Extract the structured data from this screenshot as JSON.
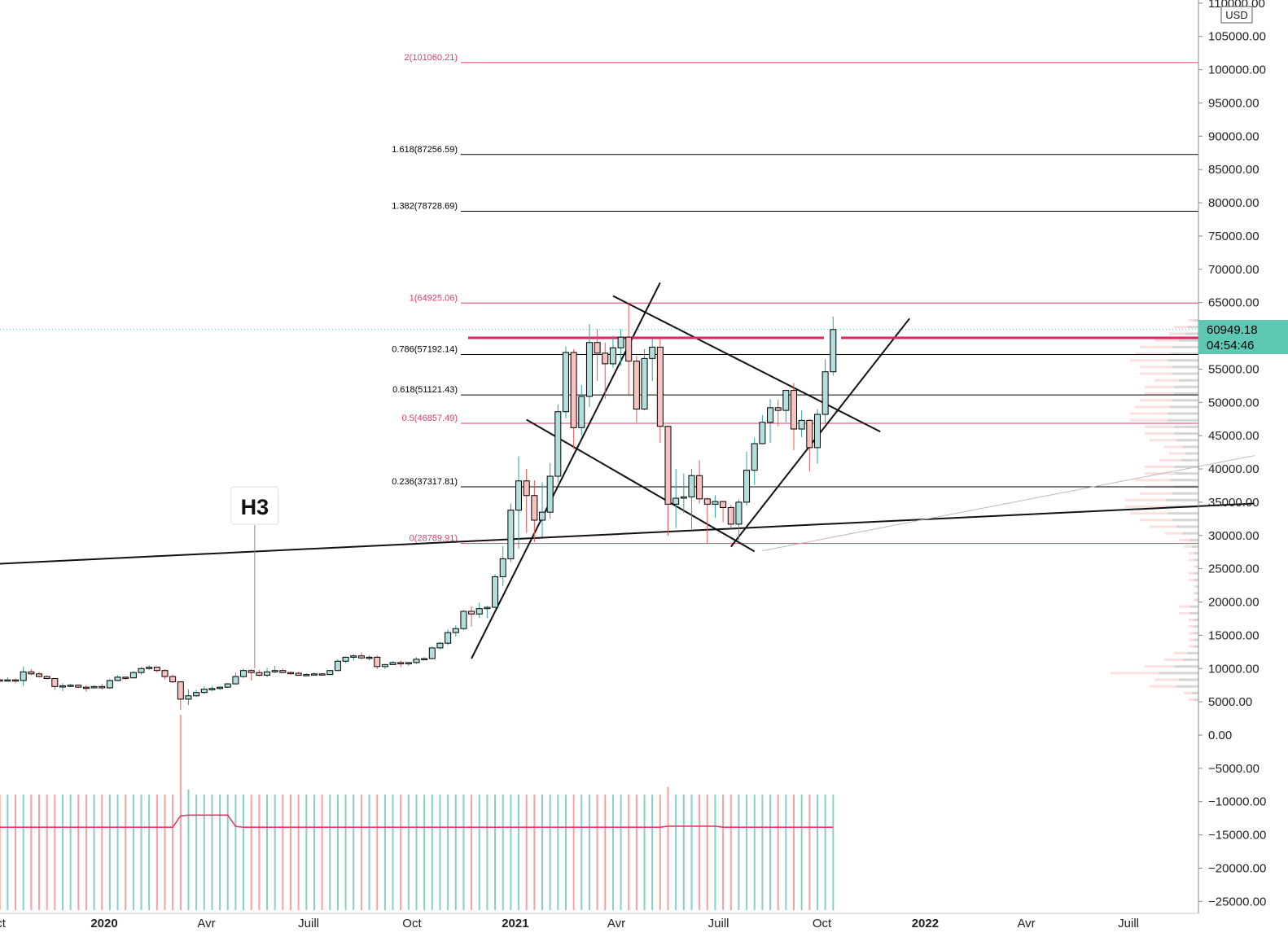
{
  "chart_data": {
    "type": "candlestick",
    "quote_currency": "USD",
    "timeframe": "weekly",
    "last_price": "60949.18",
    "countdown": "04:54:46",
    "y_axis": {
      "range": [
        -27000,
        110000
      ],
      "ticks": [
        "110000.00",
        "105000.00",
        "100000.00",
        "95000.00",
        "90000.00",
        "85000.00",
        "80000.00",
        "75000.00",
        "70000.00",
        "65000.00",
        "55000.00",
        "50000.00",
        "45000.00",
        "40000.00",
        "35000.00",
        "30000.00",
        "25000.00",
        "20000.00",
        "15000.00",
        "10000.00",
        "5000.00",
        "0.00",
        "−5000.00",
        "−10000.00",
        "−15000.00",
        "−20000.00",
        "−25000.00"
      ]
    },
    "x_axis": {
      "range": [
        "2019-09-24",
        "2022-10-21"
      ],
      "labels": [
        {
          "text": "ct",
          "date": "2019-10-01",
          "bold": false
        },
        {
          "text": "2020",
          "date": "2020-01-01",
          "bold": true
        },
        {
          "text": "Avr",
          "date": "2020-04-01",
          "bold": false
        },
        {
          "text": "Juill",
          "date": "2020-07-01",
          "bold": false
        },
        {
          "text": "Oct",
          "date": "2020-10-01",
          "bold": false
        },
        {
          "text": "2021",
          "date": "2021-01-01",
          "bold": true
        },
        {
          "text": "Avr",
          "date": "2021-04-01",
          "bold": false
        },
        {
          "text": "Juill",
          "date": "2021-07-01",
          "bold": false
        },
        {
          "text": "Oct",
          "date": "2021-10-01",
          "bold": false
        },
        {
          "text": "2022",
          "date": "2022-01-01",
          "bold": true
        },
        {
          "text": "Avr",
          "date": "2022-04-01",
          "bold": false
        },
        {
          "text": "Juill",
          "date": "2022-07-01",
          "bold": false
        }
      ]
    },
    "candles": [
      {
        "date": "2019-09-30",
        "o": 8300,
        "h": 8500,
        "l": 7900,
        "c": 8200
      },
      {
        "date": "2019-10-07",
        "o": 8200,
        "h": 8700,
        "l": 8000,
        "c": 8300
      },
      {
        "date": "2019-10-14",
        "o": 8300,
        "h": 8500,
        "l": 7800,
        "c": 8200
      },
      {
        "date": "2019-10-21",
        "o": 8200,
        "h": 10300,
        "l": 7400,
        "c": 9500
      },
      {
        "date": "2019-10-28",
        "o": 9500,
        "h": 9900,
        "l": 9000,
        "c": 9200
      },
      {
        "date": "2019-11-04",
        "o": 9200,
        "h": 9500,
        "l": 8700,
        "c": 8800
      },
      {
        "date": "2019-11-11",
        "o": 8800,
        "h": 9000,
        "l": 8400,
        "c": 8500
      },
      {
        "date": "2019-11-18",
        "o": 8500,
        "h": 8600,
        "l": 6800,
        "c": 7300
      },
      {
        "date": "2019-11-25",
        "o": 7300,
        "h": 7800,
        "l": 6600,
        "c": 7400
      },
      {
        "date": "2019-12-02",
        "o": 7400,
        "h": 7700,
        "l": 7200,
        "c": 7500
      },
      {
        "date": "2019-12-09",
        "o": 7500,
        "h": 7600,
        "l": 7100,
        "c": 7200
      },
      {
        "date": "2019-12-16",
        "o": 7200,
        "h": 7500,
        "l": 6500,
        "c": 7100
      },
      {
        "date": "2019-12-23",
        "o": 7100,
        "h": 7500,
        "l": 7000,
        "c": 7300
      },
      {
        "date": "2019-12-30",
        "o": 7300,
        "h": 7700,
        "l": 6900,
        "c": 7100
      },
      {
        "date": "2020-01-06",
        "o": 7100,
        "h": 8400,
        "l": 7000,
        "c": 8200
      },
      {
        "date": "2020-01-13",
        "o": 8200,
        "h": 9000,
        "l": 8100,
        "c": 8700
      },
      {
        "date": "2020-01-20",
        "o": 8700,
        "h": 8800,
        "l": 8300,
        "c": 8600
      },
      {
        "date": "2020-01-27",
        "o": 8600,
        "h": 9600,
        "l": 8500,
        "c": 9400
      },
      {
        "date": "2020-02-03",
        "o": 9400,
        "h": 10200,
        "l": 9100,
        "c": 10000
      },
      {
        "date": "2020-02-10",
        "o": 10000,
        "h": 10500,
        "l": 9800,
        "c": 10200
      },
      {
        "date": "2020-02-17",
        "o": 10200,
        "h": 10300,
        "l": 9400,
        "c": 9700
      },
      {
        "date": "2020-02-24",
        "o": 9700,
        "h": 9900,
        "l": 8400,
        "c": 8800
      },
      {
        "date": "2020-03-02",
        "o": 8800,
        "h": 9100,
        "l": 7800,
        "c": 8000
      },
      {
        "date": "2020-03-09",
        "o": 8000,
        "h": 8100,
        "l": 3800,
        "c": 5400
      },
      {
        "date": "2020-03-16",
        "o": 5400,
        "h": 6900,
        "l": 4500,
        "c": 5900
      },
      {
        "date": "2020-03-23",
        "o": 5900,
        "h": 6800,
        "l": 5700,
        "c": 6400
      },
      {
        "date": "2020-03-30",
        "o": 6400,
        "h": 7300,
        "l": 6200,
        "c": 6900
      },
      {
        "date": "2020-04-06",
        "o": 6900,
        "h": 7400,
        "l": 6600,
        "c": 7000
      },
      {
        "date": "2020-04-13",
        "o": 7000,
        "h": 7300,
        "l": 6800,
        "c": 7200
      },
      {
        "date": "2020-04-20",
        "o": 7200,
        "h": 7800,
        "l": 7100,
        "c": 7700
      },
      {
        "date": "2020-04-27",
        "o": 7700,
        "h": 9400,
        "l": 7600,
        "c": 8800
      },
      {
        "date": "2020-05-04",
        "o": 8800,
        "h": 10000,
        "l": 8600,
        "c": 9700
      },
      {
        "date": "2020-05-11",
        "o": 9700,
        "h": 9900,
        "l": 8200,
        "c": 9400
      },
      {
        "date": "2020-05-18",
        "o": 9400,
        "h": 9800,
        "l": 8800,
        "c": 9000
      },
      {
        "date": "2020-05-25",
        "o": 9000,
        "h": 10100,
        "l": 8700,
        "c": 9500
      },
      {
        "date": "2020-06-01",
        "o": 9500,
        "h": 10400,
        "l": 9300,
        "c": 9700
      },
      {
        "date": "2020-06-08",
        "o": 9700,
        "h": 10000,
        "l": 9300,
        "c": 9400
      },
      {
        "date": "2020-06-15",
        "o": 9400,
        "h": 9600,
        "l": 9100,
        "c": 9300
      },
      {
        "date": "2020-06-22",
        "o": 9300,
        "h": 9500,
        "l": 8900,
        "c": 9000
      },
      {
        "date": "2020-06-29",
        "o": 9000,
        "h": 9300,
        "l": 8900,
        "c": 9100
      },
      {
        "date": "2020-07-06",
        "o": 9100,
        "h": 9400,
        "l": 9000,
        "c": 9200
      },
      {
        "date": "2020-07-13",
        "o": 9200,
        "h": 9300,
        "l": 9000,
        "c": 9100
      },
      {
        "date": "2020-07-20",
        "o": 9100,
        "h": 9800,
        "l": 9000,
        "c": 9700
      },
      {
        "date": "2020-07-27",
        "o": 9700,
        "h": 11400,
        "l": 9600,
        "c": 11100
      },
      {
        "date": "2020-08-03",
        "o": 11100,
        "h": 11800,
        "l": 10800,
        "c": 11700
      },
      {
        "date": "2020-08-10",
        "o": 11700,
        "h": 12200,
        "l": 11200,
        "c": 11900
      },
      {
        "date": "2020-08-17",
        "o": 11900,
        "h": 12400,
        "l": 11400,
        "c": 11600
      },
      {
        "date": "2020-08-24",
        "o": 11600,
        "h": 12000,
        "l": 11200,
        "c": 11700
      },
      {
        "date": "2020-08-31",
        "o": 11700,
        "h": 12000,
        "l": 9900,
        "c": 10300
      },
      {
        "date": "2020-09-07",
        "o": 10300,
        "h": 10700,
        "l": 9900,
        "c": 10600
      },
      {
        "date": "2020-09-14",
        "o": 10600,
        "h": 11100,
        "l": 10500,
        "c": 10900
      },
      {
        "date": "2020-09-21",
        "o": 10900,
        "h": 11200,
        "l": 10200,
        "c": 10700
      },
      {
        "date": "2020-09-28",
        "o": 10700,
        "h": 11000,
        "l": 10400,
        "c": 10900
      },
      {
        "date": "2020-10-05",
        "o": 10900,
        "h": 11700,
        "l": 10700,
        "c": 11400
      },
      {
        "date": "2020-10-12",
        "o": 11400,
        "h": 11700,
        "l": 11200,
        "c": 11500
      },
      {
        "date": "2020-10-19",
        "o": 11500,
        "h": 13300,
        "l": 11400,
        "c": 13100
      },
      {
        "date": "2020-10-26",
        "o": 13100,
        "h": 14000,
        "l": 12900,
        "c": 13800
      },
      {
        "date": "2020-11-02",
        "o": 13800,
        "h": 15900,
        "l": 13500,
        "c": 15400
      },
      {
        "date": "2020-11-09",
        "o": 15400,
        "h": 16500,
        "l": 14800,
        "c": 16000
      },
      {
        "date": "2020-11-16",
        "o": 16000,
        "h": 18800,
        "l": 15800,
        "c": 18600
      },
      {
        "date": "2020-11-23",
        "o": 18600,
        "h": 19400,
        "l": 16300,
        "c": 18200
      },
      {
        "date": "2020-11-30",
        "o": 18200,
        "h": 19900,
        "l": 17600,
        "c": 19000
      },
      {
        "date": "2020-12-07",
        "o": 19000,
        "h": 19400,
        "l": 17600,
        "c": 19200
      },
      {
        "date": "2020-12-14",
        "o": 19200,
        "h": 24200,
        "l": 19000,
        "c": 23800
      },
      {
        "date": "2020-12-21",
        "o": 23800,
        "h": 28400,
        "l": 22400,
        "c": 26500
      },
      {
        "date": "2020-12-28",
        "o": 26500,
        "h": 34800,
        "l": 26000,
        "c": 33800
      },
      {
        "date": "2021-01-04",
        "o": 33800,
        "h": 41900,
        "l": 28000,
        "c": 38200
      },
      {
        "date": "2021-01-11",
        "o": 38200,
        "h": 40000,
        "l": 30400,
        "c": 36000
      },
      {
        "date": "2021-01-18",
        "o": 36000,
        "h": 38300,
        "l": 29000,
        "c": 32300
      },
      {
        "date": "2021-01-25",
        "o": 32300,
        "h": 38000,
        "l": 29800,
        "c": 33500
      },
      {
        "date": "2021-02-01",
        "o": 33500,
        "h": 40900,
        "l": 32500,
        "c": 38900
      },
      {
        "date": "2021-02-08",
        "o": 38900,
        "h": 49700,
        "l": 38000,
        "c": 48600
      },
      {
        "date": "2021-02-15",
        "o": 48600,
        "h": 58400,
        "l": 47600,
        "c": 57500
      },
      {
        "date": "2021-02-22",
        "o": 57500,
        "h": 58000,
        "l": 43000,
        "c": 46200
      },
      {
        "date": "2021-03-01",
        "o": 46200,
        "h": 52600,
        "l": 45000,
        "c": 50900
      },
      {
        "date": "2021-03-08",
        "o": 50900,
        "h": 61800,
        "l": 49300,
        "c": 59000
      },
      {
        "date": "2021-03-15",
        "o": 59000,
        "h": 61000,
        "l": 53200,
        "c": 57400
      },
      {
        "date": "2021-03-22",
        "o": 57400,
        "h": 59000,
        "l": 50500,
        "c": 55800
      },
      {
        "date": "2021-03-29",
        "o": 55800,
        "h": 60000,
        "l": 55200,
        "c": 58200
      },
      {
        "date": "2021-04-05",
        "o": 58200,
        "h": 61000,
        "l": 55500,
        "c": 59800
      },
      {
        "date": "2021-04-12",
        "o": 59800,
        "h": 64900,
        "l": 51200,
        "c": 56200
      },
      {
        "date": "2021-04-19",
        "o": 56200,
        "h": 57000,
        "l": 47000,
        "c": 49000
      },
      {
        "date": "2021-04-26",
        "o": 49000,
        "h": 58000,
        "l": 48800,
        "c": 56600
      },
      {
        "date": "2021-05-03",
        "o": 56600,
        "h": 59600,
        "l": 53200,
        "c": 58300
      },
      {
        "date": "2021-05-10",
        "o": 58300,
        "h": 59600,
        "l": 43900,
        "c": 46400
      },
      {
        "date": "2021-05-17",
        "o": 46400,
        "h": 46500,
        "l": 30000,
        "c": 34700
      },
      {
        "date": "2021-05-24",
        "o": 34700,
        "h": 40000,
        "l": 31100,
        "c": 35600
      },
      {
        "date": "2021-05-31",
        "o": 35600,
        "h": 39300,
        "l": 33400,
        "c": 35800
      },
      {
        "date": "2021-06-07",
        "o": 35800,
        "h": 40000,
        "l": 31000,
        "c": 39000
      },
      {
        "date": "2021-06-14",
        "o": 39000,
        "h": 41300,
        "l": 34800,
        "c": 35500
      },
      {
        "date": "2021-06-21",
        "o": 35500,
        "h": 35700,
        "l": 28800,
        "c": 34700
      },
      {
        "date": "2021-06-28",
        "o": 34700,
        "h": 36000,
        "l": 32700,
        "c": 35100
      },
      {
        "date": "2021-07-05",
        "o": 35100,
        "h": 35200,
        "l": 32000,
        "c": 34200
      },
      {
        "date": "2021-07-12",
        "o": 34200,
        "h": 34600,
        "l": 31000,
        "c": 31700
      },
      {
        "date": "2021-07-19",
        "o": 31700,
        "h": 35400,
        "l": 29300,
        "c": 35000
      },
      {
        "date": "2021-07-26",
        "o": 35000,
        "h": 42600,
        "l": 34500,
        "c": 39800
      },
      {
        "date": "2021-08-02",
        "o": 39800,
        "h": 44700,
        "l": 37600,
        "c": 43800
      },
      {
        "date": "2021-08-09",
        "o": 43800,
        "h": 48100,
        "l": 43700,
        "c": 47000
      },
      {
        "date": "2021-08-16",
        "o": 47000,
        "h": 50500,
        "l": 43900,
        "c": 49200
      },
      {
        "date": "2021-08-23",
        "o": 49200,
        "h": 50400,
        "l": 46400,
        "c": 48800
      },
      {
        "date": "2021-08-30",
        "o": 48800,
        "h": 51900,
        "l": 47000,
        "c": 51800
      },
      {
        "date": "2021-09-06",
        "o": 51800,
        "h": 52900,
        "l": 42800,
        "c": 46000
      },
      {
        "date": "2021-09-13",
        "o": 46000,
        "h": 48800,
        "l": 44800,
        "c": 47300
      },
      {
        "date": "2021-09-20",
        "o": 47300,
        "h": 47500,
        "l": 39600,
        "c": 43200
      },
      {
        "date": "2021-09-27",
        "o": 43200,
        "h": 49000,
        "l": 40800,
        "c": 48200
      },
      {
        "date": "2021-10-04",
        "o": 48200,
        "h": 56500,
        "l": 46900,
        "c": 54600
      },
      {
        "date": "2021-10-11",
        "o": 54600,
        "h": 62900,
        "l": 54000,
        "c": 60949.18
      }
    ],
    "fibonacci": [
      {
        "label": "2(101060.21)",
        "value": 101060.21,
        "color": "#e8376b"
      },
      {
        "label": "1.618(87256.59)",
        "value": 87256.59,
        "color": "#000000"
      },
      {
        "label": "1.382(78728.69)",
        "value": 78728.69,
        "color": "#000000"
      },
      {
        "label": "1(64925.06)",
        "value": 64925.06,
        "color": "#e8376b"
      },
      {
        "label": "0.786(57192.14)",
        "value": 57192.14,
        "color": "#000000"
      },
      {
        "label": "0.618(51121.43)",
        "value": 51121.43,
        "color": "#000000"
      },
      {
        "label": "0.5(46857.49)",
        "value": 46857.49,
        "color": "#e8376b"
      },
      {
        "label": "0.236(37317.81)",
        "value": 37317.81,
        "color": "#000000"
      },
      {
        "label": "0(28789.91)",
        "value": 28789.91,
        "color": "#e8376b"
      }
    ],
    "annotations": [
      {
        "text": "H3",
        "date": "2020-05-14",
        "value": 10000
      }
    ],
    "colors": {
      "up": "#26a69a",
      "down": "#ef5350",
      "fib_pink": "#e8376b",
      "resistance": "#e91e63",
      "price_badge": "#5fc8b4",
      "ma": "#e8376b"
    }
  }
}
